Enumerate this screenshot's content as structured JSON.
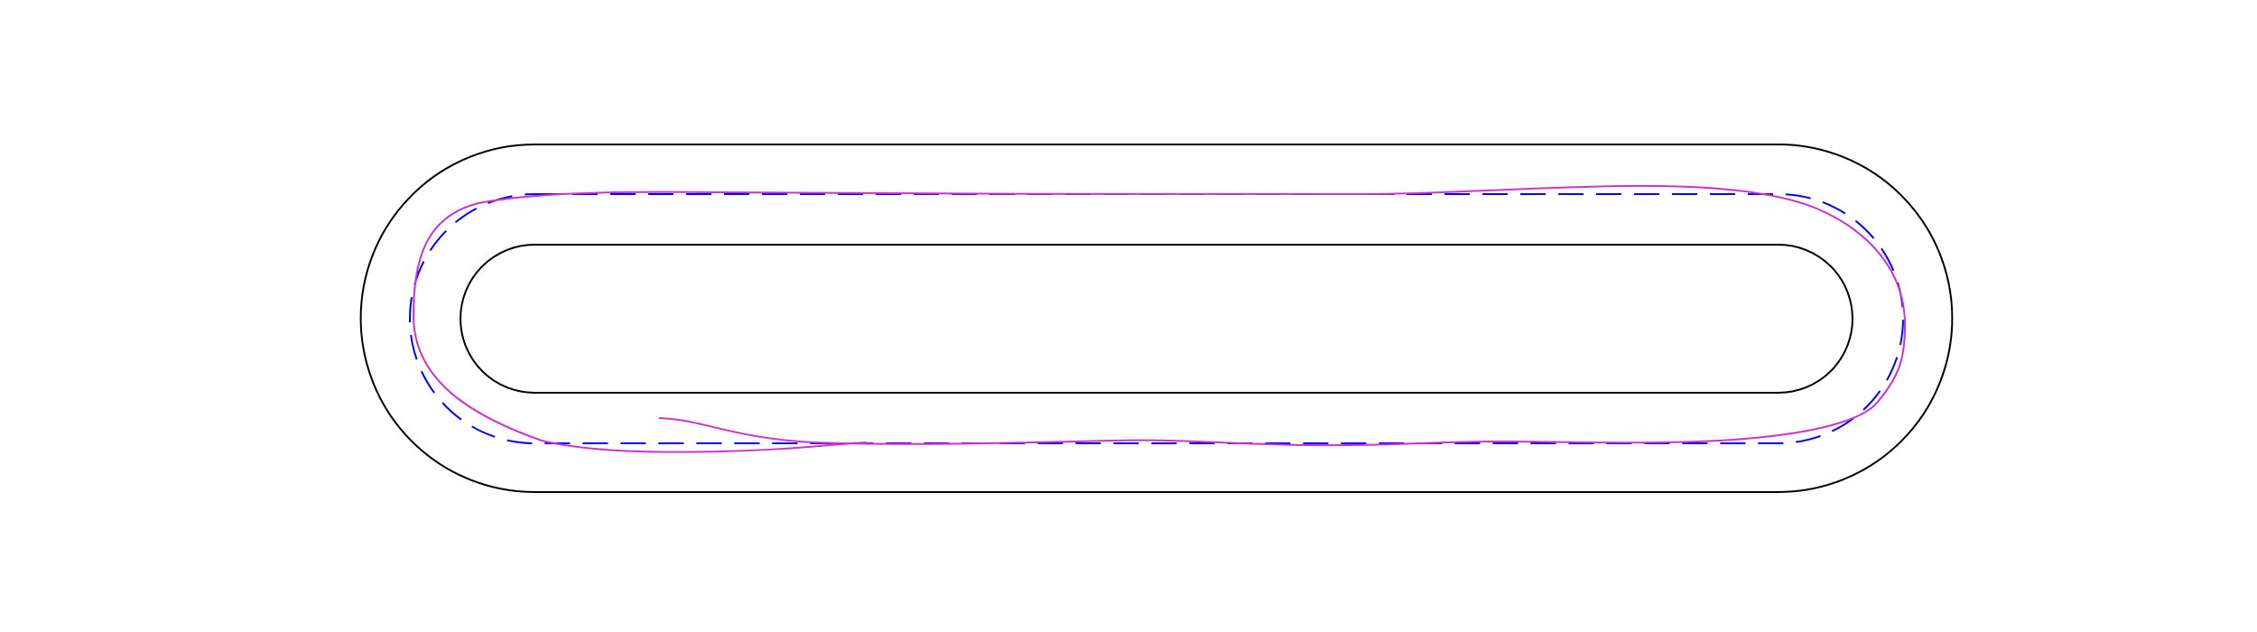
{
  "diagram": {
    "type": "track-trajectory-plot",
    "elements": [
      {
        "name": "outer-boundary",
        "color": "#000000",
        "style": "solid"
      },
      {
        "name": "inner-boundary",
        "color": "#000000",
        "style": "solid"
      },
      {
        "name": "centerline",
        "color": "#0000ff",
        "style": "dashed"
      },
      {
        "name": "trajectory",
        "color": "#cc33cc",
        "style": "solid"
      }
    ]
  }
}
